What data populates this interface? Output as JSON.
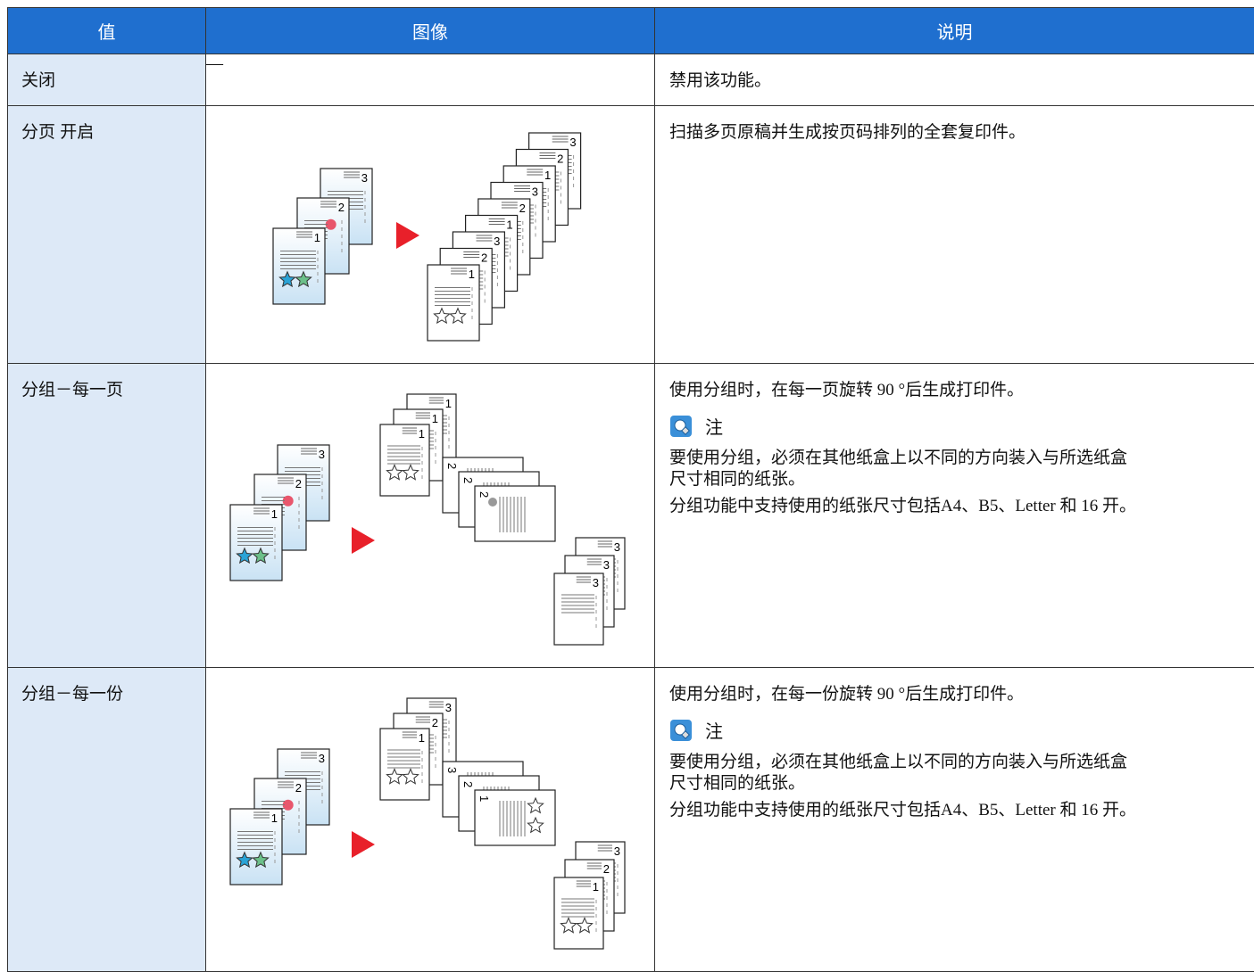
{
  "table": {
    "header": [
      "值",
      "图像",
      "说明"
    ],
    "rows": [
      {
        "value": "关闭",
        "image": "—",
        "description": "禁用该功能。"
      },
      {
        "value": "分页 开启",
        "description": "扫描多页原稿并生成按页码排列的全套复印件。"
      },
      {
        "value": "分组－每一页",
        "description": "使用分组时，在每一页旋转 90 °后生成打印件。",
        "note": {
          "title": "注",
          "lines": [
            "要使用分组，必须在其他纸盒上以不同的方向装入与所选纸盒尺寸相同的纸张。",
            "分组功能中支持使用的纸张尺寸包括A4、B5、Letter 和 16 开。"
          ]
        }
      },
      {
        "value": "分组－每一份",
        "description": "使用分组时，在每一份旋转 90 °后生成打印件。",
        "note": {
          "title": "注",
          "lines": [
            "要使用分组，必须在其他纸盒上以不同的方向装入与所选纸盒尺寸相同的纸张。",
            "分组功能中支持使用的纸张尺寸包括A4、B5、Letter 和 16 开。"
          ]
        }
      }
    ],
    "page_labels": [
      "1",
      "2",
      "3"
    ]
  }
}
